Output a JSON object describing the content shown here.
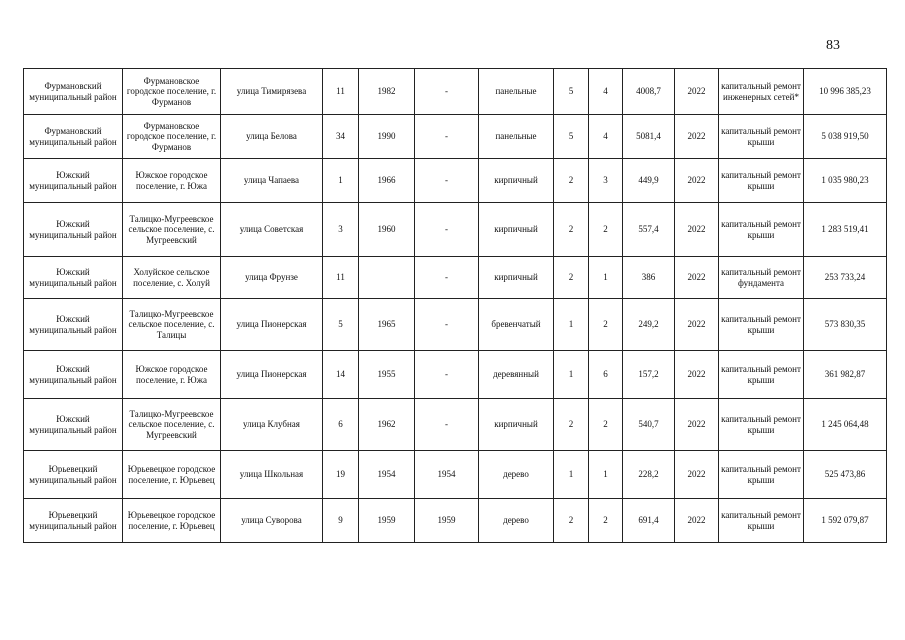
{
  "page_number": "83",
  "rows": [
    [
      "Фурмановский муниципальный район",
      "Фурмановское городское поселение, г. Фурманов",
      "улица Тимирязева",
      "11",
      "1982",
      "-",
      "панельные",
      "5",
      "4",
      "4008,7",
      "2022",
      "капитальный ремонт инженерных сетей*",
      "10 996 385,23"
    ],
    [
      "Фурмановский муниципальный район",
      "Фурмановское городское поселение, г. Фурманов",
      "улица Белова",
      "34",
      "1990",
      "-",
      "панельные",
      "5",
      "4",
      "5081,4",
      "2022",
      "капитальный ремонт крыши",
      "5 038 919,50"
    ],
    [
      "Южский муниципальный район",
      "Южское городское поселение, г. Южа",
      "улица Чапаева",
      "1",
      "1966",
      "-",
      "кирпичный",
      "2",
      "3",
      "449,9",
      "2022",
      "капитальный ремонт крыши",
      "1 035 980,23"
    ],
    [
      "Южский муниципальный район",
      "Талицко-Мугреевское сельское поселение, с. Мугреевский",
      "улица Советская",
      "3",
      "1960",
      "-",
      "кирпичный",
      "2",
      "2",
      "557,4",
      "2022",
      "капитальный ремонт крыши",
      "1 283 519,41"
    ],
    [
      "Южский муниципальный район",
      "Холуйское сельское поселение, с. Холуй",
      "улица Фрунзе",
      "11",
      "",
      "-",
      "кирпичный",
      "2",
      "1",
      "386",
      "2022",
      "капитальный ремонт фундамента",
      "253 733,24"
    ],
    [
      "Южский муниципальный район",
      "Талицко-Мугреевское сельское поселение, с. Талицы",
      "улица Пионерская",
      "5",
      "1965",
      "-",
      "бревенчатый",
      "1",
      "2",
      "249,2",
      "2022",
      "капитальный ремонт крыши",
      "573 830,35"
    ],
    [
      "Южский муниципальный район",
      "Южское городское поселение, г. Южа",
      "улица Пионерская",
      "14",
      "1955",
      "-",
      "деревянный",
      "1",
      "6",
      "157,2",
      "2022",
      "капитальный ремонт крыши",
      "361 982,87"
    ],
    [
      "Южский муниципальный район",
      "Талицко-Мугреевское сельское поселение, с. Мугреевский",
      "улица Клубная",
      "6",
      "1962",
      "-",
      "кирпичный",
      "2",
      "2",
      "540,7",
      "2022",
      "капитальный ремонт крыши",
      "1 245 064,48"
    ],
    [
      "Юрьевецкий муниципальный район",
      "Юрьевецкое городское поселение, г. Юрьевец",
      "улица Школьная",
      "19",
      "1954",
      "1954",
      "дерево",
      "1",
      "1",
      "228,2",
      "2022",
      "капитальный ремонт крыши",
      "525 473,86"
    ],
    [
      "Юрьевецкий муниципальный район",
      "Юрьевецкое городское поселение, г. Юрьевец",
      "улица Суворова",
      "9",
      "1959",
      "1959",
      "дерево",
      "2",
      "2",
      "691,4",
      "2022",
      "капитальный ремонт крыши",
      "1 592 079,87"
    ]
  ]
}
